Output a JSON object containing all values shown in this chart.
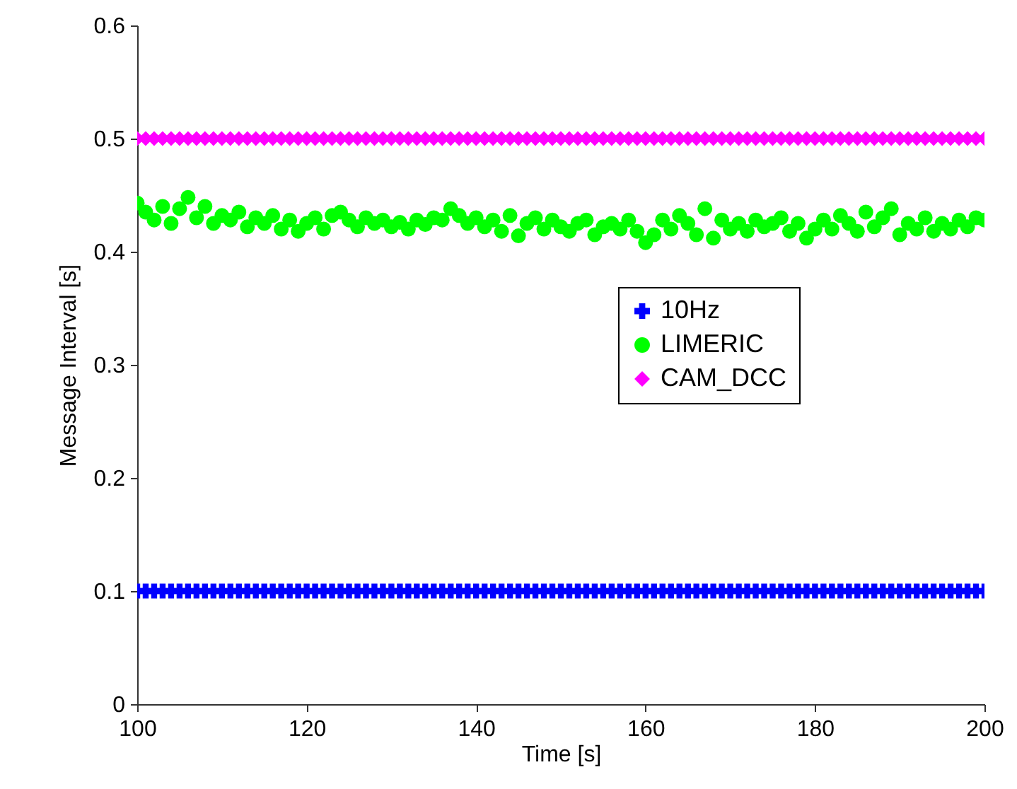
{
  "chart_data": {
    "type": "scatter",
    "xlabel": "Time [s]",
    "ylabel": "Message Interval [s]",
    "xlim": [
      100,
      200
    ],
    "xticks": [
      100,
      120,
      140,
      160,
      180,
      200
    ],
    "ylim": [
      0,
      0.6
    ],
    "yticks": [
      0,
      0.1,
      0.2,
      0.3,
      0.4,
      0.5,
      0.6
    ],
    "grid": false,
    "legend": "right",
    "x": [
      100,
      101,
      102,
      103,
      104,
      105,
      106,
      107,
      108,
      109,
      110,
      111,
      112,
      113,
      114,
      115,
      116,
      117,
      118,
      119,
      120,
      121,
      122,
      123,
      124,
      125,
      126,
      127,
      128,
      129,
      130,
      131,
      132,
      133,
      134,
      135,
      136,
      137,
      138,
      139,
      140,
      141,
      142,
      143,
      144,
      145,
      146,
      147,
      148,
      149,
      150,
      151,
      152,
      153,
      154,
      155,
      156,
      157,
      158,
      159,
      160,
      161,
      162,
      163,
      164,
      165,
      166,
      167,
      168,
      169,
      170,
      171,
      172,
      173,
      174,
      175,
      176,
      177,
      178,
      179,
      180,
      181,
      182,
      183,
      184,
      185,
      186,
      187,
      188,
      189,
      190,
      191,
      192,
      193,
      194,
      195,
      196,
      197,
      198,
      199,
      200
    ],
    "series": [
      {
        "name": "10Hz",
        "color": "#0000ff",
        "marker": "cross",
        "values": [
          0.1,
          0.1,
          0.1,
          0.1,
          0.1,
          0.1,
          0.1,
          0.1,
          0.1,
          0.1,
          0.1,
          0.1,
          0.1,
          0.1,
          0.1,
          0.1,
          0.1,
          0.1,
          0.1,
          0.1,
          0.1,
          0.1,
          0.1,
          0.1,
          0.1,
          0.1,
          0.1,
          0.1,
          0.1,
          0.1,
          0.1,
          0.1,
          0.1,
          0.1,
          0.1,
          0.1,
          0.1,
          0.1,
          0.1,
          0.1,
          0.1,
          0.1,
          0.1,
          0.1,
          0.1,
          0.1,
          0.1,
          0.1,
          0.1,
          0.1,
          0.1,
          0.1,
          0.1,
          0.1,
          0.1,
          0.1,
          0.1,
          0.1,
          0.1,
          0.1,
          0.1,
          0.1,
          0.1,
          0.1,
          0.1,
          0.1,
          0.1,
          0.1,
          0.1,
          0.1,
          0.1,
          0.1,
          0.1,
          0.1,
          0.1,
          0.1,
          0.1,
          0.1,
          0.1,
          0.1,
          0.1,
          0.1,
          0.1,
          0.1,
          0.1,
          0.1,
          0.1,
          0.1,
          0.1,
          0.1,
          0.1,
          0.1,
          0.1,
          0.1,
          0.1,
          0.1,
          0.1,
          0.1,
          0.1,
          0.1,
          0.1
        ]
      },
      {
        "name": "LIMERIC",
        "color": "#00ff00",
        "marker": "circle",
        "values": [
          0.443,
          0.435,
          0.428,
          0.44,
          0.425,
          0.438,
          0.448,
          0.43,
          0.44,
          0.425,
          0.432,
          0.428,
          0.435,
          0.422,
          0.43,
          0.425,
          0.432,
          0.42,
          0.428,
          0.418,
          0.425,
          0.43,
          0.42,
          0.432,
          0.435,
          0.428,
          0.422,
          0.43,
          0.425,
          0.428,
          0.422,
          0.426,
          0.42,
          0.428,
          0.424,
          0.43,
          0.428,
          0.438,
          0.432,
          0.425,
          0.43,
          0.422,
          0.428,
          0.418,
          0.432,
          0.414,
          0.425,
          0.43,
          0.42,
          0.428,
          0.422,
          0.418,
          0.425,
          0.428,
          0.415,
          0.422,
          0.425,
          0.42,
          0.428,
          0.418,
          0.408,
          0.415,
          0.428,
          0.42,
          0.432,
          0.425,
          0.415,
          0.438,
          0.412,
          0.428,
          0.42,
          0.425,
          0.418,
          0.428,
          0.422,
          0.425,
          0.43,
          0.418,
          0.425,
          0.412,
          0.42,
          0.428,
          0.42,
          0.432,
          0.425,
          0.418,
          0.435,
          0.422,
          0.43,
          0.438,
          0.415,
          0.425,
          0.42,
          0.43,
          0.418,
          0.425,
          0.42,
          0.428,
          0.422,
          0.43,
          0.428
        ]
      },
      {
        "name": "CAM_DCC",
        "color": "#ff00ff",
        "marker": "diamond",
        "values": [
          0.5,
          0.5,
          0.5,
          0.5,
          0.5,
          0.5,
          0.5,
          0.5,
          0.5,
          0.5,
          0.5,
          0.5,
          0.5,
          0.5,
          0.5,
          0.5,
          0.5,
          0.5,
          0.5,
          0.5,
          0.5,
          0.5,
          0.5,
          0.5,
          0.5,
          0.5,
          0.5,
          0.5,
          0.5,
          0.5,
          0.5,
          0.5,
          0.5,
          0.5,
          0.5,
          0.5,
          0.5,
          0.5,
          0.5,
          0.5,
          0.5,
          0.5,
          0.5,
          0.5,
          0.5,
          0.5,
          0.5,
          0.5,
          0.5,
          0.5,
          0.5,
          0.5,
          0.5,
          0.5,
          0.5,
          0.5,
          0.5,
          0.5,
          0.5,
          0.5,
          0.5,
          0.5,
          0.5,
          0.5,
          0.5,
          0.5,
          0.5,
          0.5,
          0.5,
          0.5,
          0.5,
          0.5,
          0.5,
          0.5,
          0.5,
          0.5,
          0.5,
          0.5,
          0.5,
          0.5,
          0.5,
          0.5,
          0.5,
          0.5,
          0.5,
          0.5,
          0.5,
          0.5,
          0.5,
          0.5,
          0.5,
          0.5,
          0.5,
          0.5,
          0.5,
          0.5,
          0.5,
          0.5,
          0.5,
          0.5,
          0.5
        ]
      }
    ]
  }
}
